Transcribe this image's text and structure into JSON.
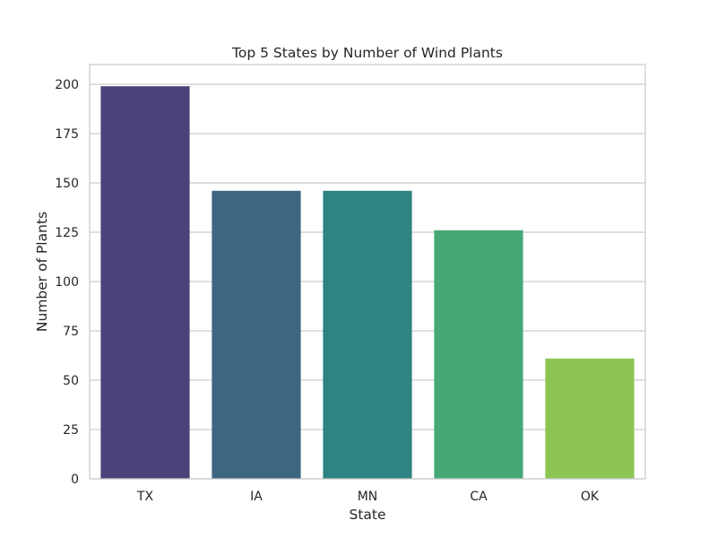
{
  "chart_data": {
    "type": "bar",
    "title": "Top 5 States by Number of Wind Plants",
    "xlabel": "State",
    "ylabel": "Number of Plants",
    "categories": [
      "TX",
      "IA",
      "MN",
      "CA",
      "OK"
    ],
    "values": [
      199,
      146,
      146,
      126,
      61
    ],
    "colors": [
      "#4a4278",
      "#3e6681",
      "#2f8380",
      "#46a877",
      "#8dc555"
    ],
    "ylim": [
      0,
      210
    ],
    "yticks": [
      0,
      25,
      50,
      75,
      100,
      125,
      150,
      175,
      200
    ],
    "grid": "horizontal",
    "grid_color": "#cccccc",
    "frame_color": "#cccccc"
  }
}
